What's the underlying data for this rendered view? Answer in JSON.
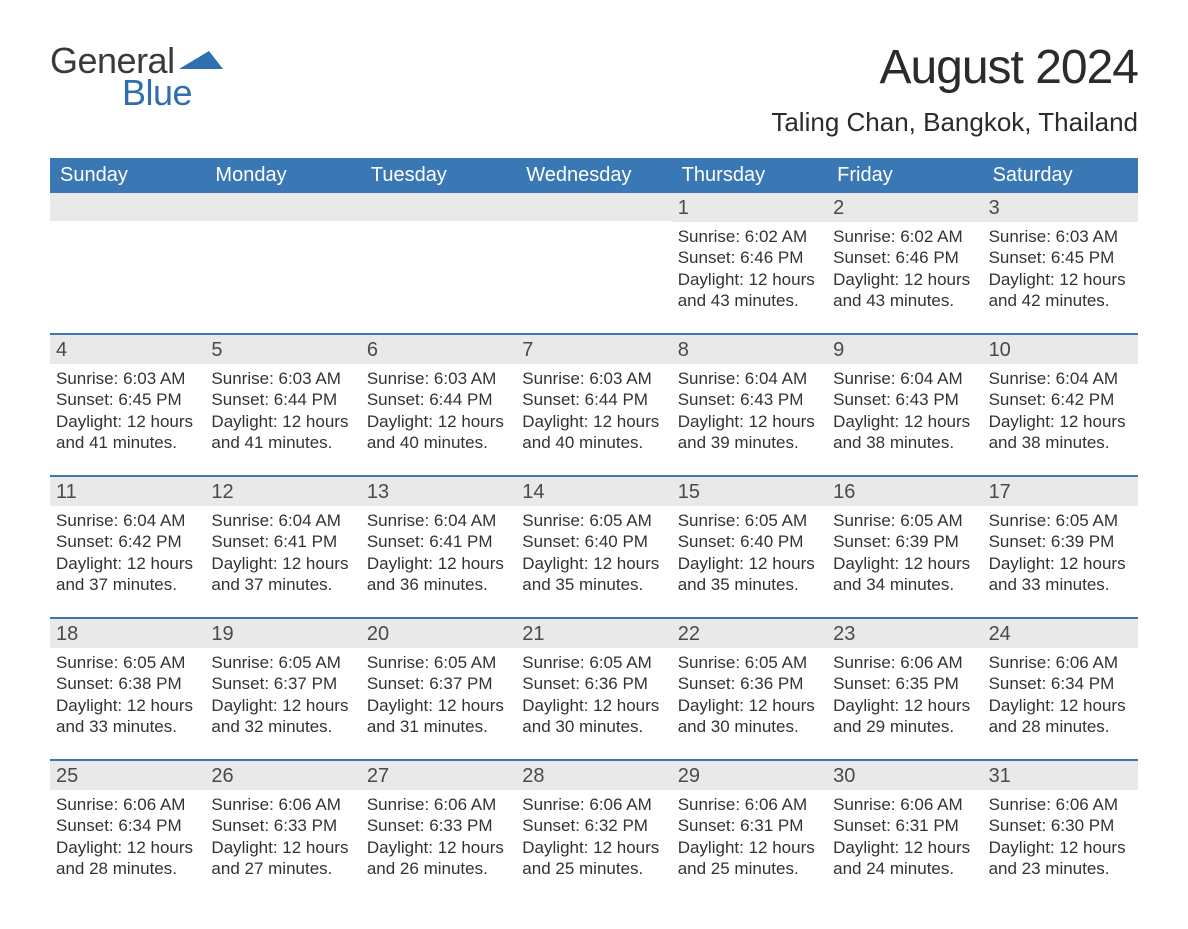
{
  "brand": {
    "word1": "General",
    "word2": "Blue",
    "word1_color": "#3a3a3a",
    "word2_color": "#2f6fb0",
    "flag_color": "#2f6fb0"
  },
  "colors": {
    "header_bg": "#3a78b5",
    "header_text": "#ffffff",
    "daynum_bg": "#e9e9e9",
    "body_text": "#333333",
    "rule": "#3a78b5",
    "page_bg": "#ffffff"
  },
  "typography": {
    "month_title_pt": 48,
    "location_pt": 26,
    "dayhead_pt": 20,
    "daynum_pt": 20,
    "body_pt": 17
  },
  "title": "August 2024",
  "location": "Taling Chan, Bangkok, Thailand",
  "day_headers": [
    "Sunday",
    "Monday",
    "Tuesday",
    "Wednesday",
    "Thursday",
    "Friday",
    "Saturday"
  ],
  "weeks": [
    [
      null,
      null,
      null,
      null,
      {
        "n": "1",
        "sunrise": "Sunrise: 6:02 AM",
        "sunset": "Sunset: 6:46 PM",
        "day1": "Daylight: 12 hours",
        "day2": "and 43 minutes."
      },
      {
        "n": "2",
        "sunrise": "Sunrise: 6:02 AM",
        "sunset": "Sunset: 6:46 PM",
        "day1": "Daylight: 12 hours",
        "day2": "and 43 minutes."
      },
      {
        "n": "3",
        "sunrise": "Sunrise: 6:03 AM",
        "sunset": "Sunset: 6:45 PM",
        "day1": "Daylight: 12 hours",
        "day2": "and 42 minutes."
      }
    ],
    [
      {
        "n": "4",
        "sunrise": "Sunrise: 6:03 AM",
        "sunset": "Sunset: 6:45 PM",
        "day1": "Daylight: 12 hours",
        "day2": "and 41 minutes."
      },
      {
        "n": "5",
        "sunrise": "Sunrise: 6:03 AM",
        "sunset": "Sunset: 6:44 PM",
        "day1": "Daylight: 12 hours",
        "day2": "and 41 minutes."
      },
      {
        "n": "6",
        "sunrise": "Sunrise: 6:03 AM",
        "sunset": "Sunset: 6:44 PM",
        "day1": "Daylight: 12 hours",
        "day2": "and 40 minutes."
      },
      {
        "n": "7",
        "sunrise": "Sunrise: 6:03 AM",
        "sunset": "Sunset: 6:44 PM",
        "day1": "Daylight: 12 hours",
        "day2": "and 40 minutes."
      },
      {
        "n": "8",
        "sunrise": "Sunrise: 6:04 AM",
        "sunset": "Sunset: 6:43 PM",
        "day1": "Daylight: 12 hours",
        "day2": "and 39 minutes."
      },
      {
        "n": "9",
        "sunrise": "Sunrise: 6:04 AM",
        "sunset": "Sunset: 6:43 PM",
        "day1": "Daylight: 12 hours",
        "day2": "and 38 minutes."
      },
      {
        "n": "10",
        "sunrise": "Sunrise: 6:04 AM",
        "sunset": "Sunset: 6:42 PM",
        "day1": "Daylight: 12 hours",
        "day2": "and 38 minutes."
      }
    ],
    [
      {
        "n": "11",
        "sunrise": "Sunrise: 6:04 AM",
        "sunset": "Sunset: 6:42 PM",
        "day1": "Daylight: 12 hours",
        "day2": "and 37 minutes."
      },
      {
        "n": "12",
        "sunrise": "Sunrise: 6:04 AM",
        "sunset": "Sunset: 6:41 PM",
        "day1": "Daylight: 12 hours",
        "day2": "and 37 minutes."
      },
      {
        "n": "13",
        "sunrise": "Sunrise: 6:04 AM",
        "sunset": "Sunset: 6:41 PM",
        "day1": "Daylight: 12 hours",
        "day2": "and 36 minutes."
      },
      {
        "n": "14",
        "sunrise": "Sunrise: 6:05 AM",
        "sunset": "Sunset: 6:40 PM",
        "day1": "Daylight: 12 hours",
        "day2": "and 35 minutes."
      },
      {
        "n": "15",
        "sunrise": "Sunrise: 6:05 AM",
        "sunset": "Sunset: 6:40 PM",
        "day1": "Daylight: 12 hours",
        "day2": "and 35 minutes."
      },
      {
        "n": "16",
        "sunrise": "Sunrise: 6:05 AM",
        "sunset": "Sunset: 6:39 PM",
        "day1": "Daylight: 12 hours",
        "day2": "and 34 minutes."
      },
      {
        "n": "17",
        "sunrise": "Sunrise: 6:05 AM",
        "sunset": "Sunset: 6:39 PM",
        "day1": "Daylight: 12 hours",
        "day2": "and 33 minutes."
      }
    ],
    [
      {
        "n": "18",
        "sunrise": "Sunrise: 6:05 AM",
        "sunset": "Sunset: 6:38 PM",
        "day1": "Daylight: 12 hours",
        "day2": "and 33 minutes."
      },
      {
        "n": "19",
        "sunrise": "Sunrise: 6:05 AM",
        "sunset": "Sunset: 6:37 PM",
        "day1": "Daylight: 12 hours",
        "day2": "and 32 minutes."
      },
      {
        "n": "20",
        "sunrise": "Sunrise: 6:05 AM",
        "sunset": "Sunset: 6:37 PM",
        "day1": "Daylight: 12 hours",
        "day2": "and 31 minutes."
      },
      {
        "n": "21",
        "sunrise": "Sunrise: 6:05 AM",
        "sunset": "Sunset: 6:36 PM",
        "day1": "Daylight: 12 hours",
        "day2": "and 30 minutes."
      },
      {
        "n": "22",
        "sunrise": "Sunrise: 6:05 AM",
        "sunset": "Sunset: 6:36 PM",
        "day1": "Daylight: 12 hours",
        "day2": "and 30 minutes."
      },
      {
        "n": "23",
        "sunrise": "Sunrise: 6:06 AM",
        "sunset": "Sunset: 6:35 PM",
        "day1": "Daylight: 12 hours",
        "day2": "and 29 minutes."
      },
      {
        "n": "24",
        "sunrise": "Sunrise: 6:06 AM",
        "sunset": "Sunset: 6:34 PM",
        "day1": "Daylight: 12 hours",
        "day2": "and 28 minutes."
      }
    ],
    [
      {
        "n": "25",
        "sunrise": "Sunrise: 6:06 AM",
        "sunset": "Sunset: 6:34 PM",
        "day1": "Daylight: 12 hours",
        "day2": "and 28 minutes."
      },
      {
        "n": "26",
        "sunrise": "Sunrise: 6:06 AM",
        "sunset": "Sunset: 6:33 PM",
        "day1": "Daylight: 12 hours",
        "day2": "and 27 minutes."
      },
      {
        "n": "27",
        "sunrise": "Sunrise: 6:06 AM",
        "sunset": "Sunset: 6:33 PM",
        "day1": "Daylight: 12 hours",
        "day2": "and 26 minutes."
      },
      {
        "n": "28",
        "sunrise": "Sunrise: 6:06 AM",
        "sunset": "Sunset: 6:32 PM",
        "day1": "Daylight: 12 hours",
        "day2": "and 25 minutes."
      },
      {
        "n": "29",
        "sunrise": "Sunrise: 6:06 AM",
        "sunset": "Sunset: 6:31 PM",
        "day1": "Daylight: 12 hours",
        "day2": "and 25 minutes."
      },
      {
        "n": "30",
        "sunrise": "Sunrise: 6:06 AM",
        "sunset": "Sunset: 6:31 PM",
        "day1": "Daylight: 12 hours",
        "day2": "and 24 minutes."
      },
      {
        "n": "31",
        "sunrise": "Sunrise: 6:06 AM",
        "sunset": "Sunset: 6:30 PM",
        "day1": "Daylight: 12 hours",
        "day2": "and 23 minutes."
      }
    ]
  ]
}
